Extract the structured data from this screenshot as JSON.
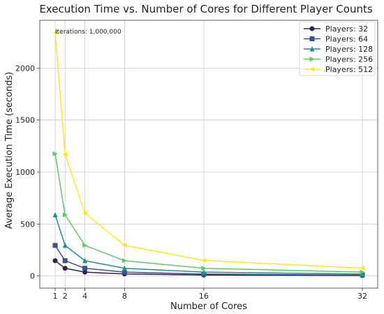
{
  "chart_data": {
    "type": "line",
    "title": "Execution Time vs. Number of Cores for Different Player Counts",
    "xlabel": "Number of Cores",
    "ylabel": "Average Execution Time (seconds)",
    "x": [
      1,
      2,
      4,
      8,
      16,
      32
    ],
    "xticks": [
      "1",
      "2",
      "4",
      "8",
      "16",
      "32"
    ],
    "xlim": [
      -0.55,
      33.55
    ],
    "yticks": [
      0,
      500,
      1000,
      1500,
      2000
    ],
    "ylim": [
      -117,
      2460
    ],
    "grid": true,
    "legend_position": "top-right",
    "annotation": "Iterations: 1,000,000",
    "series": [
      {
        "name": "Players: 32",
        "color": "#3a1e4f",
        "marker": "circle",
        "values": [
          147,
          74,
          37,
          19,
          9,
          5
        ]
      },
      {
        "name": "Players: 64",
        "color": "#3b528b",
        "marker": "square",
        "values": [
          294,
          147,
          74,
          37,
          18,
          9
        ]
      },
      {
        "name": "Players: 128",
        "color": "#21918c",
        "marker": "triangle-up",
        "values": [
          588,
          294,
          147,
          74,
          37,
          18
        ]
      },
      {
        "name": "Players: 256",
        "color": "#5ec962",
        "marker": "triangle-right",
        "values": [
          1176,
          588,
          294,
          147,
          74,
          37
        ]
      },
      {
        "name": "Players: 512",
        "color": "#fde725",
        "marker": "triangle-left",
        "values": [
          2340,
          1170,
          605,
          295,
          150,
          75
        ]
      }
    ]
  }
}
